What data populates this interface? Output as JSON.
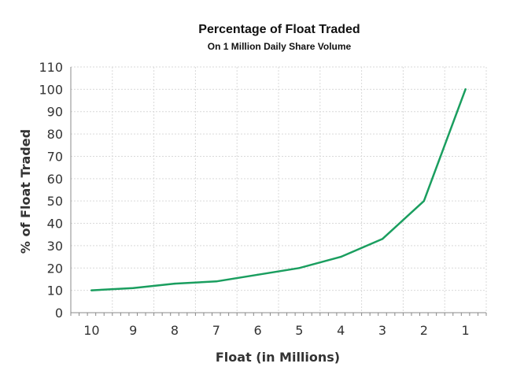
{
  "chart_data": {
    "type": "line",
    "title": "Percentage of Float Traded",
    "subtitle": "On 1 Million Daily Share Volume",
    "xlabel": "Float (in Millions)",
    "ylabel": "% of Float Traded",
    "categories": [
      "10",
      "9",
      "8",
      "7",
      "6",
      "5",
      "4",
      "3",
      "2",
      "1"
    ],
    "series": [
      {
        "values": [
          10,
          11,
          13,
          14,
          17,
          20,
          25,
          33,
          50,
          100
        ]
      }
    ],
    "yticks": [
      "0",
      "10",
      "20",
      "30",
      "40",
      "50",
      "60",
      "70",
      "80",
      "90",
      "100",
      "110"
    ],
    "ylim": [
      0,
      110
    ],
    "grid": true,
    "line_color": "#1a9e5f"
  }
}
